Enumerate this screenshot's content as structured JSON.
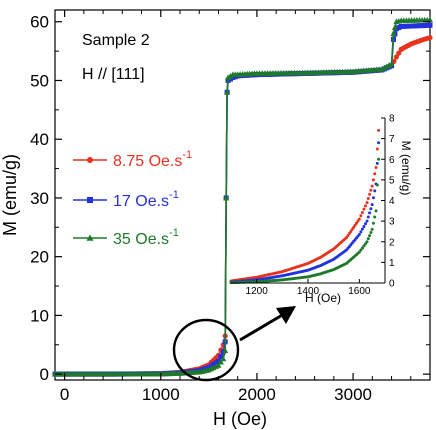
{
  "chart_data": [
    {
      "type": "line",
      "title": "",
      "xlabel": "H (Oe)",
      "ylabel": "M (emu/g)",
      "xlim": [
        -100,
        3800
      ],
      "ylim": [
        -1,
        62
      ],
      "xticks": [
        0,
        1000,
        2000,
        3000
      ],
      "yticks": [
        0,
        10,
        20,
        30,
        40,
        50,
        60
      ],
      "annotations": [
        "Sample 2",
        "H // [111]"
      ],
      "legend_position": "left",
      "series": [
        {
          "name": "8.75 Oe.s",
          "name_sup": "-1",
          "color": "#e8331f",
          "marker": "circle",
          "x": [
            -100,
            0,
            500,
            1000,
            1200,
            1400,
            1500,
            1600,
            1650,
            1670,
            1680,
            1690,
            1700,
            1750,
            1800,
            2000,
            2500,
            3000,
            3300,
            3400,
            3450,
            3500,
            3600,
            3700,
            3800
          ],
          "y": [
            0,
            0,
            0,
            0.1,
            0.3,
            0.9,
            1.6,
            3.2,
            5.0,
            6.5,
            30,
            48,
            50,
            50.5,
            50.8,
            51,
            51.2,
            51.4,
            51.8,
            52.5,
            54,
            55.3,
            56.2,
            56.8,
            57.3
          ]
        },
        {
          "name": "17 Oe.s",
          "name_sup": "-1",
          "color": "#2233dd",
          "marker": "square",
          "x": [
            -100,
            0,
            500,
            1000,
            1200,
            1400,
            1500,
            1600,
            1650,
            1670,
            1680,
            1690,
            1700,
            1750,
            1800,
            2000,
            2500,
            3000,
            3300,
            3400,
            3420,
            3450,
            3500,
            3800
          ],
          "y": [
            0,
            0,
            0,
            0.05,
            0.2,
            0.6,
            1.1,
            2.2,
            3.8,
            5.5,
            30,
            48,
            50,
            50.5,
            50.8,
            51,
            51.2,
            51.4,
            51.8,
            52.5,
            57,
            58.8,
            59.2,
            59.4
          ]
        },
        {
          "name": "35 Oe.s",
          "name_sup": "-1",
          "color": "#1e7a2a",
          "marker": "triangle",
          "x": [
            -100,
            0,
            500,
            1000,
            1200,
            1400,
            1500,
            1600,
            1650,
            1670,
            1680,
            1690,
            1700,
            1750,
            1800,
            2000,
            2500,
            3000,
            3300,
            3400,
            3420,
            3450,
            3500,
            3800
          ],
          "y": [
            0,
            0,
            0,
            0.03,
            0.12,
            0.35,
            0.7,
            1.5,
            2.6,
            4.0,
            30,
            48,
            50.5,
            51,
            51,
            51.2,
            51.3,
            51.5,
            51.9,
            52.8,
            58,
            60,
            60.2,
            60.3
          ]
        }
      ]
    },
    {
      "type": "line",
      "title": "",
      "xlabel": "H (Oe)",
      "ylabel": "M (emu/g)",
      "xlim": [
        1100,
        1700
      ],
      "ylim": [
        0,
        8
      ],
      "xticks": [
        1200,
        1400,
        1600
      ],
      "yticks": [
        0,
        1,
        2,
        3,
        4,
        5,
        6,
        7,
        8
      ],
      "series": [
        {
          "name": "8.75 Oe.s",
          "color": "#e8331f",
          "x": [
            1100,
            1200,
            1300,
            1400,
            1450,
            1500,
            1550,
            1600,
            1630,
            1650,
            1665,
            1675
          ],
          "y": [
            0.1,
            0.28,
            0.55,
            0.95,
            1.25,
            1.65,
            2.2,
            3.1,
            3.9,
            4.7,
            5.6,
            7.4
          ]
        },
        {
          "name": "17 Oe.s",
          "color": "#2233dd",
          "x": [
            1100,
            1200,
            1300,
            1400,
            1450,
            1500,
            1550,
            1600,
            1630,
            1650,
            1665,
            1675
          ],
          "y": [
            0.05,
            0.15,
            0.35,
            0.62,
            0.85,
            1.15,
            1.6,
            2.35,
            3.0,
            3.8,
            4.8,
            6.8
          ]
        },
        {
          "name": "35 Oe.s",
          "color": "#1e7a2a",
          "x": [
            1100,
            1200,
            1300,
            1400,
            1450,
            1500,
            1550,
            1600,
            1630,
            1650,
            1665,
            1675
          ],
          "y": [
            0.02,
            0.06,
            0.15,
            0.3,
            0.45,
            0.65,
            0.95,
            1.5,
            2.0,
            2.6,
            3.5,
            6.0
          ]
        }
      ]
    }
  ]
}
